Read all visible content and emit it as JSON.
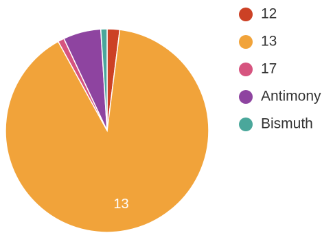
{
  "chart_data": {
    "type": "pie",
    "title": "",
    "legend_position": "right",
    "categories": [
      "12",
      "13",
      "17",
      "Antimony",
      "Bismuth"
    ],
    "values": [
      2,
      90,
      1,
      6,
      1
    ],
    "colors": [
      "#cc4125",
      "#f1a33a",
      "#d6547f",
      "#8e44a0",
      "#4aa79b"
    ],
    "slice_labels": [
      "",
      "13",
      "",
      "",
      ""
    ]
  }
}
